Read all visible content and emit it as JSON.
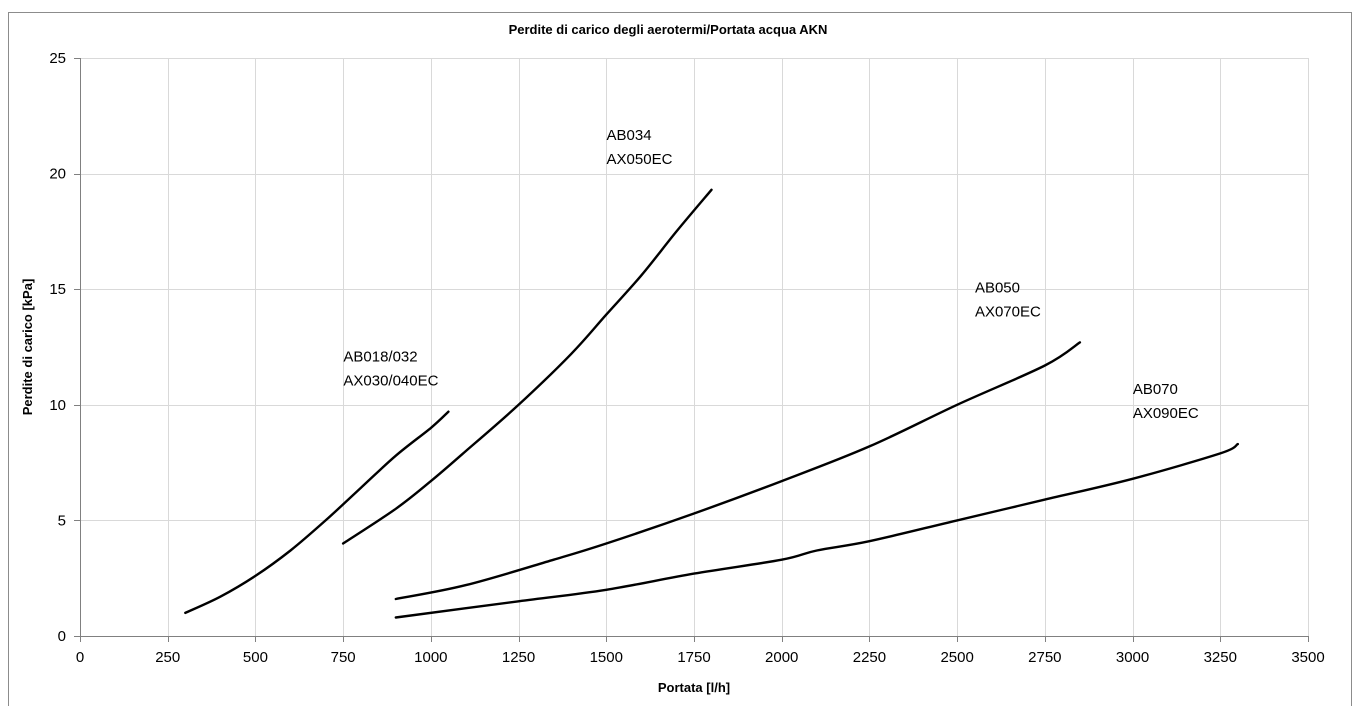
{
  "chart_data": {
    "type": "line",
    "title": "Perdite di carico degli aerotermi/Portata acqua AKN",
    "xlabel": "Portata [l/h]",
    "ylabel": "Perdite di carico [kPa]",
    "xlim": [
      0,
      3500
    ],
    "ylim": [
      0,
      25
    ],
    "x_ticks": [
      0,
      250,
      500,
      750,
      1000,
      1250,
      1500,
      1750,
      2000,
      2250,
      2500,
      2750,
      3000,
      3250,
      3500
    ],
    "y_ticks": [
      0,
      5,
      10,
      15,
      20,
      25
    ],
    "grid": true,
    "legend": "none",
    "series": [
      {
        "label_lines": [
          "AB018/032",
          "AX030/040EC"
        ],
        "points": [
          [
            300,
            1.0
          ],
          [
            400,
            1.7
          ],
          [
            500,
            2.6
          ],
          [
            600,
            3.7
          ],
          [
            700,
            5.0
          ],
          [
            800,
            6.4
          ],
          [
            900,
            7.8
          ],
          [
            1000,
            9.0
          ],
          [
            1050,
            9.7
          ]
        ]
      },
      {
        "label_lines": [
          "AB034",
          "AX050EC"
        ],
        "points": [
          [
            750,
            4.0
          ],
          [
            900,
            5.5
          ],
          [
            1000,
            6.7
          ],
          [
            1100,
            8.0
          ],
          [
            1250,
            10.0
          ],
          [
            1400,
            12.2
          ],
          [
            1500,
            13.9
          ],
          [
            1600,
            15.6
          ],
          [
            1700,
            17.5
          ],
          [
            1800,
            19.3
          ]
        ]
      },
      {
        "label_lines": [
          "AB050",
          "AX070EC"
        ],
        "points": [
          [
            900,
            1.6
          ],
          [
            1100,
            2.2
          ],
          [
            1350,
            3.3
          ],
          [
            1500,
            4.0
          ],
          [
            1750,
            5.3
          ],
          [
            2000,
            6.7
          ],
          [
            2250,
            8.2
          ],
          [
            2500,
            10.0
          ],
          [
            2750,
            11.7
          ],
          [
            2850,
            12.7
          ]
        ]
      },
      {
        "label_lines": [
          "AB070",
          "AX090EC"
        ],
        "points": [
          [
            900,
            0.8
          ],
          [
            1250,
            1.5
          ],
          [
            1500,
            2.0
          ],
          [
            1750,
            2.7
          ],
          [
            2000,
            3.3
          ],
          [
            2100,
            3.7
          ],
          [
            2250,
            4.1
          ],
          [
            2500,
            5.0
          ],
          [
            2750,
            5.9
          ],
          [
            3000,
            6.8
          ],
          [
            3250,
            7.9
          ],
          [
            3300,
            8.3
          ]
        ]
      }
    ]
  }
}
